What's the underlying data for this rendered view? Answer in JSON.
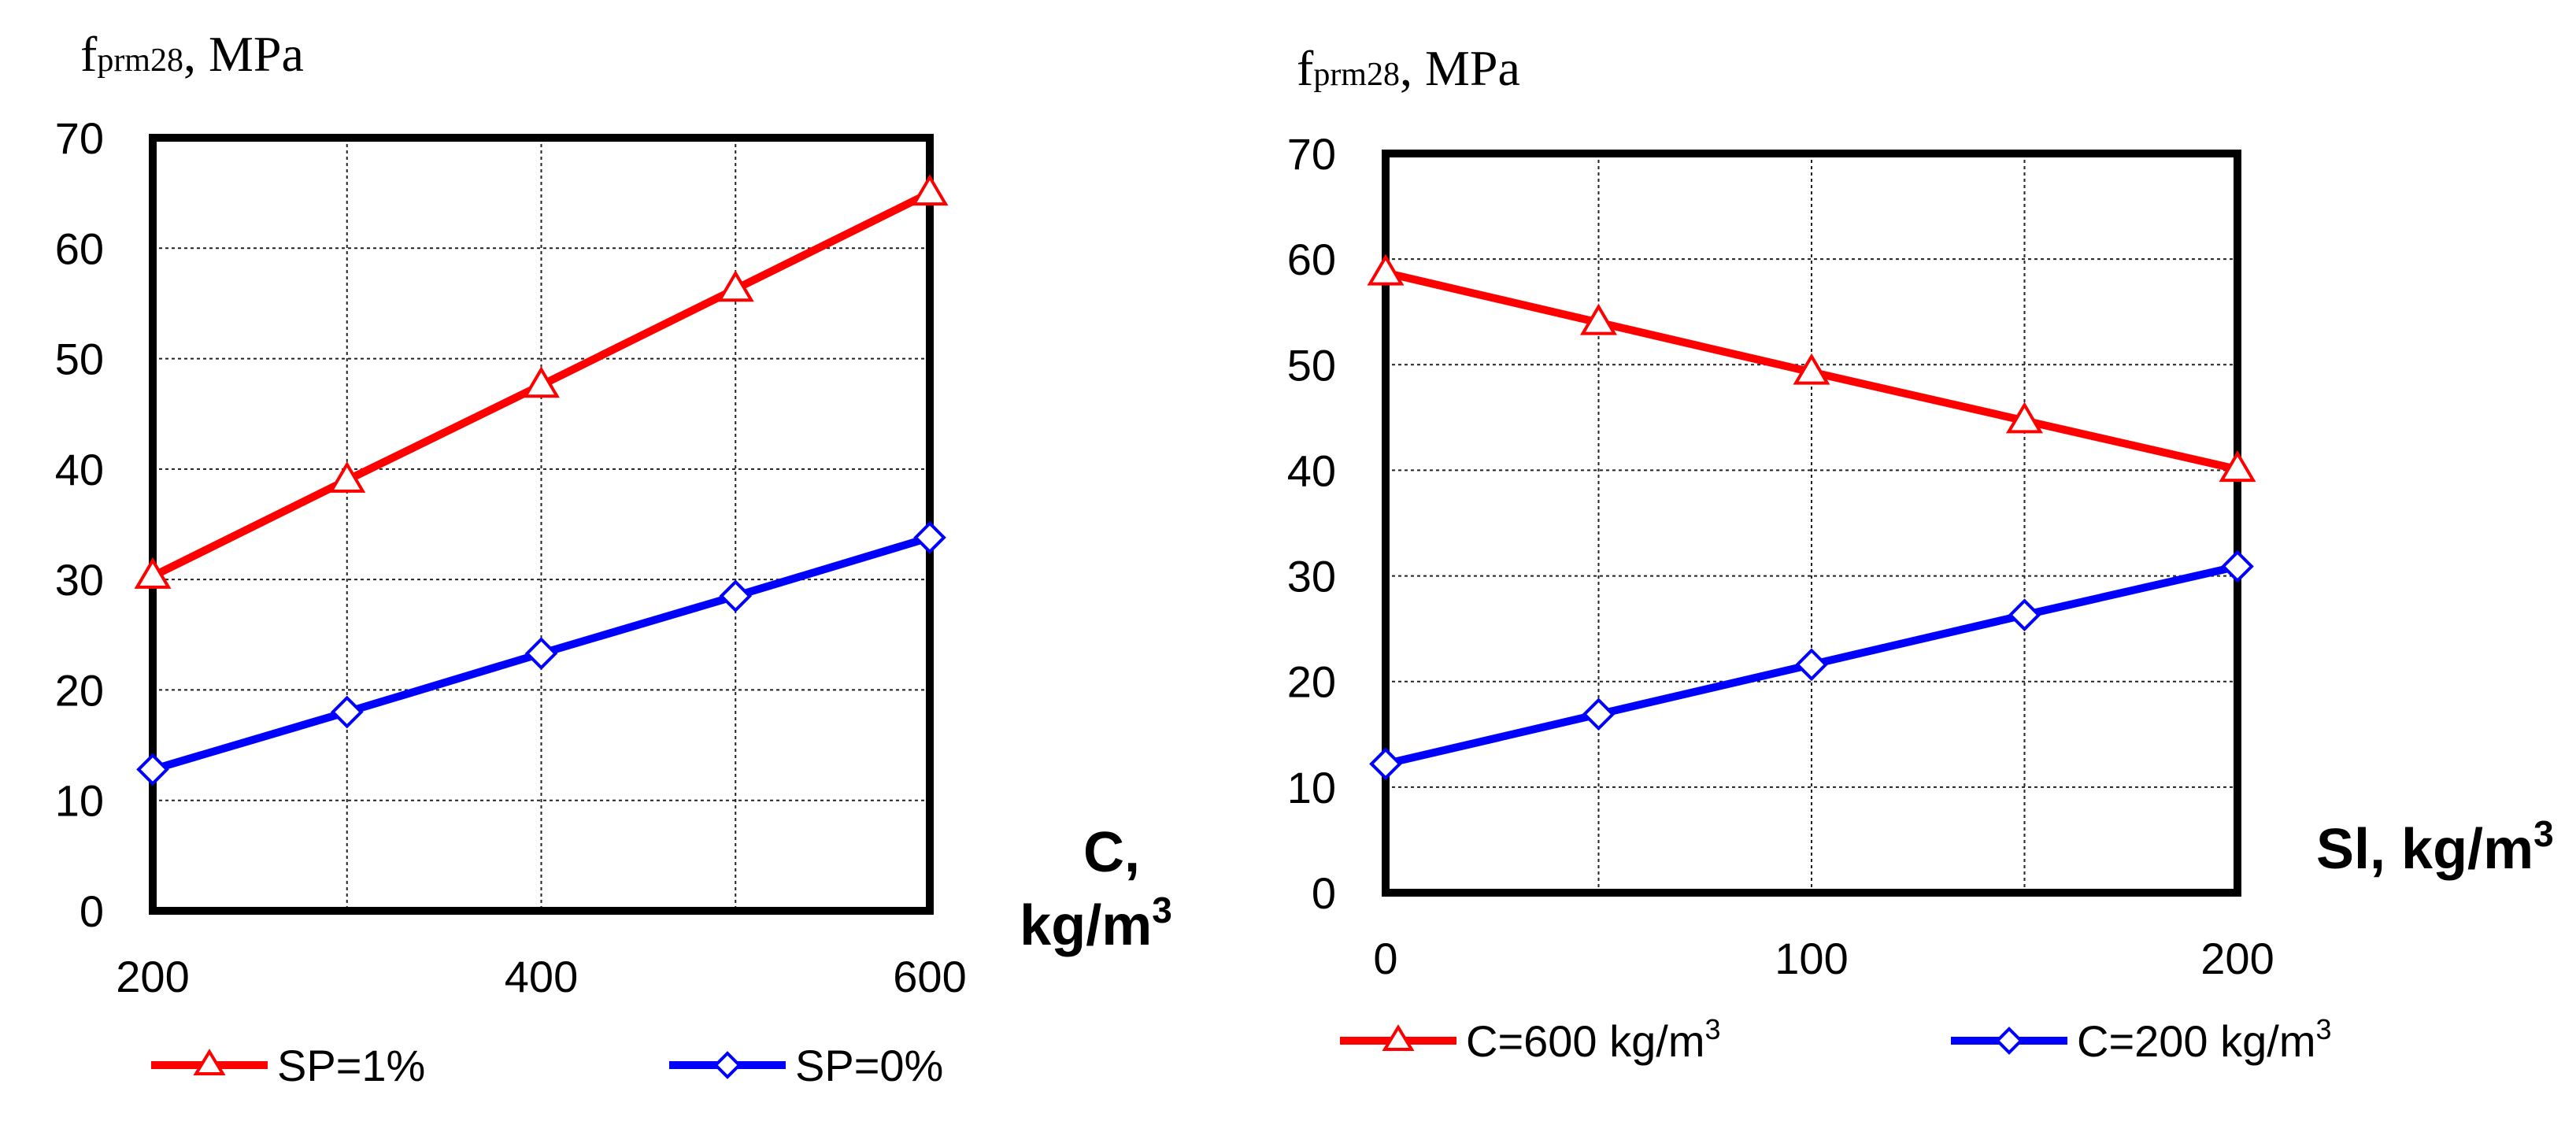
{
  "chart_data": [
    {
      "type": "line",
      "ylabel_main": "f",
      "ylabel_sub": "prm28",
      "ylabel_unit": ", MPa",
      "xlabel_line1": "C,",
      "xlabel_line2": "kg/m",
      "xlabel_sup": "3",
      "x": [
        200,
        300,
        400,
        500,
        600
      ],
      "xlim": [
        200,
        600
      ],
      "ylim": [
        0,
        70
      ],
      "xticks": [
        200,
        400,
        600
      ],
      "xticks_labels": [
        "200",
        "400",
        "600"
      ],
      "yticks": [
        0,
        10,
        20,
        30,
        40,
        50,
        60,
        70
      ],
      "yticks_labels": [
        "0",
        "10",
        "20",
        "30",
        "40",
        "50",
        "60",
        "70"
      ],
      "grid": true,
      "series": [
        {
          "name": "SP=1%",
          "legend_label": "SP=1%",
          "legend_sup": "",
          "color": "#ff0000",
          "marker": "triangle",
          "values": [
            30.3,
            39.0,
            47.6,
            56.3,
            65.0
          ]
        },
        {
          "name": "SP=0%",
          "legend_label": "SP=0%",
          "legend_sup": "",
          "color": "#0000ff",
          "marker": "diamond",
          "values": [
            12.8,
            18.0,
            23.3,
            28.5,
            33.8
          ]
        }
      ]
    },
    {
      "type": "line",
      "ylabel_main": "f",
      "ylabel_sub": "prm28",
      "ylabel_unit": ", MPa",
      "xlabel_line1": "Sl, kg/m",
      "xlabel_line2": "",
      "xlabel_sup": "3",
      "x": [
        0,
        50,
        100,
        150,
        200
      ],
      "xlim": [
        0,
        200
      ],
      "ylim": [
        0,
        70
      ],
      "xticks": [
        0,
        100,
        200
      ],
      "xticks_labels": [
        "0",
        "100",
        "200"
      ],
      "yticks": [
        0,
        10,
        20,
        30,
        40,
        50,
        60,
        70
      ],
      "yticks_labels": [
        "0",
        "10",
        "20",
        "30",
        "40",
        "50",
        "60",
        "70"
      ],
      "grid": true,
      "series": [
        {
          "name": "C=600 kg/m3",
          "legend_label": "C=600 kg/m",
          "legend_sup": "3",
          "color": "#ff0000",
          "marker": "triangle",
          "values": [
            58.7,
            54.0,
            49.3,
            44.7,
            40.1
          ]
        },
        {
          "name": "C=200 kg/m3",
          "legend_label": "C=200 kg/m",
          "legend_sup": "3",
          "color": "#0000ff",
          "marker": "diamond",
          "values": [
            12.2,
            16.9,
            21.6,
            26.3,
            30.9
          ]
        }
      ]
    }
  ]
}
